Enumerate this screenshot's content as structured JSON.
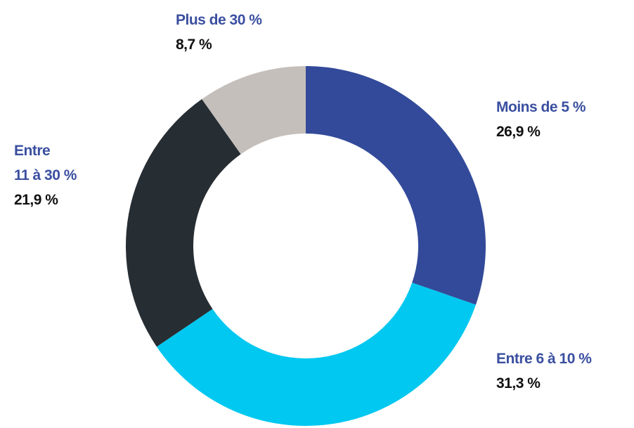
{
  "chart_data": {
    "type": "pie",
    "categories": [
      "Moins de 5 %",
      "Entre 6 à 10 %",
      "Entre\n11 à 30 %",
      "Plus de 30 %"
    ],
    "values": [
      26.9,
      31.3,
      21.9,
      8.7
    ],
    "value_labels": [
      "26,9 %",
      "31,3 %",
      "21,9 %",
      "8,7 %"
    ],
    "colors": [
      "#334a9a",
      "#00c8f0",
      "#262d33",
      "#c5bfbb"
    ]
  }
}
